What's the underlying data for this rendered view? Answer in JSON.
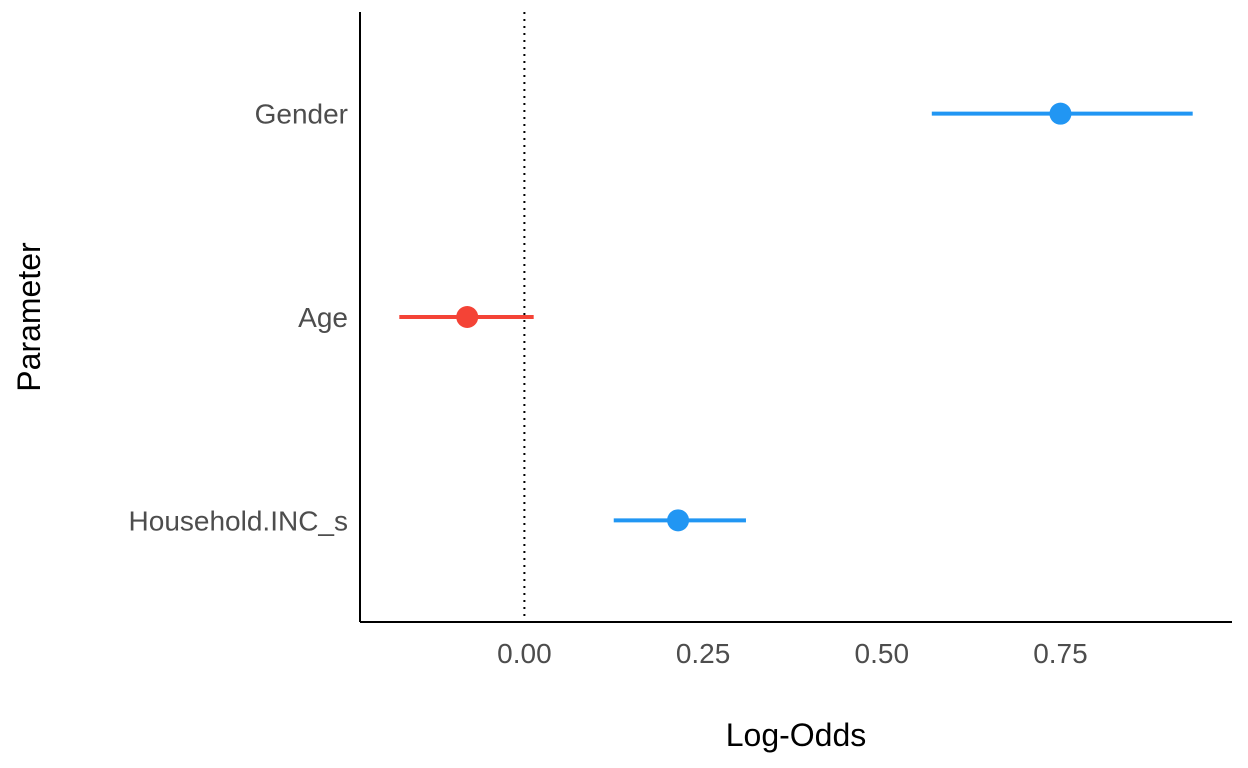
{
  "chart_data": {
    "type": "scatter",
    "subtype": "coefficient-plot",
    "title": "",
    "xlabel": "Log-Odds",
    "ylabel": "Parameter",
    "xlim": [
      -0.23,
      0.99
    ],
    "x_ticks": [
      0.0,
      0.25,
      0.5,
      0.75
    ],
    "x_tick_labels": [
      "0.00",
      "0.25",
      "0.50",
      "0.75"
    ],
    "reference_line": {
      "x": 0,
      "style": "dotted"
    },
    "grid": false,
    "legend": "none",
    "categories": [
      "Gender",
      "Age",
      "Household.INC_s"
    ],
    "estimates": [
      0.75,
      -0.08,
      0.215
    ],
    "ci_low": [
      0.57,
      -0.175,
      0.125
    ],
    "ci_high": [
      0.935,
      0.013,
      0.31
    ],
    "colors": [
      "#2196F3",
      "#F44336",
      "#2196F3"
    ]
  }
}
